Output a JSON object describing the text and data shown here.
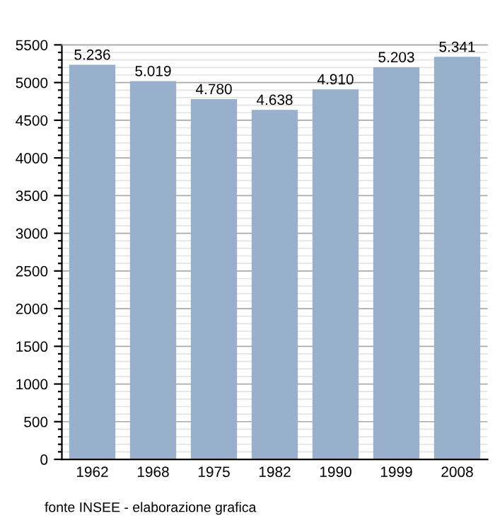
{
  "chart_data": {
    "type": "bar",
    "categories": [
      "1962",
      "1968",
      "1975",
      "1982",
      "1990",
      "1999",
      "2008"
    ],
    "values": [
      5236,
      5019,
      4780,
      4638,
      4910,
      5203,
      5341
    ],
    "value_labels": [
      "5.236",
      "5.019",
      "4.780",
      "4.638",
      "4.910",
      "5.203",
      "5.341"
    ],
    "color": "#98b0cc",
    "ylim": [
      0,
      5500
    ],
    "yticks": [
      0,
      {
        "value": 100,
        "label": null
      },
      {
        "value": 200,
        "label": null
      },
      {
        "value": 300,
        "label": null
      },
      {
        "value": 400,
        "label": null
      },
      500,
      {
        "value": 600,
        "label": null
      },
      {
        "value": 700,
        "label": null
      },
      {
        "value": 800,
        "label": null
      },
      {
        "value": 900,
        "label": null
      },
      1000,
      {
        "value": 1100,
        "label": null
      },
      {
        "value": 1200,
        "label": null
      },
      {
        "value": 1300,
        "label": null
      },
      {
        "value": 1400,
        "label": null
      },
      1500,
      {
        "value": 1600,
        "label": null
      },
      {
        "value": 1700,
        "label": null
      },
      {
        "value": 1800,
        "label": null
      },
      {
        "value": 1900,
        "label": null
      },
      2000,
      {
        "value": 2100,
        "label": null
      },
      {
        "value": 2200,
        "label": null
      },
      {
        "value": 2300,
        "label": null
      },
      {
        "value": 2400,
        "label": null
      },
      2500,
      {
        "value": 2600,
        "label": null
      },
      {
        "value": 2700,
        "label": null
      },
      {
        "value": 2800,
        "label": null
      },
      {
        "value": 2900,
        "label": null
      },
      3000,
      {
        "value": 3100,
        "label": null
      },
      {
        "value": 3200,
        "label": null
      },
      {
        "value": 3300,
        "label": null
      },
      {
        "value": 3400,
        "label": null
      },
      3500,
      {
        "value": 3600,
        "label": null
      },
      {
        "value": 3700,
        "label": null
      },
      {
        "value": 3800,
        "label": null
      },
      {
        "value": 3900,
        "label": null
      },
      4000,
      {
        "value": 4100,
        "label": null
      },
      {
        "value": 4200,
        "label": null
      },
      {
        "value": 4300,
        "label": null
      },
      {
        "value": 4400,
        "label": null
      },
      4500,
      {
        "value": 4600,
        "label": null
      },
      {
        "value": 4700,
        "label": null
      },
      {
        "value": 4800,
        "label": null
      },
      {
        "value": 4900,
        "label": null
      },
      5000,
      {
        "value": 5100,
        "label": null
      },
      {
        "value": 5200,
        "label": null
      },
      {
        "value": 5300,
        "label": null
      },
      {
        "value": 5400,
        "label": null
      },
      5500
    ],
    "grid": "y",
    "legend": false,
    "annotations": [
      "fonte INSEE - elaborazione grafica"
    ]
  }
}
